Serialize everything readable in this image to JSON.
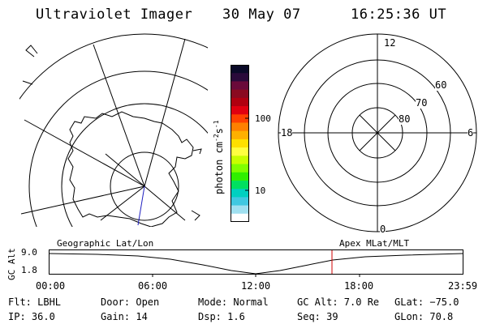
{
  "header": {
    "instrument": "Ultraviolet Imager",
    "date": "30 May 07",
    "time": "16:25:36 UT"
  },
  "colorbar": {
    "unit": "photon cm",
    "unit_exp1": "-2",
    "unit_mid": "s",
    "unit_exp2": "-1",
    "tick_high": "100",
    "tick_low": "10",
    "colors": [
      "#0a0a28",
      "#2a0a3a",
      "#6a0a3a",
      "#8a0a20",
      "#b00010",
      "#e00010",
      "#ff4000",
      "#ff8000",
      "#ffb000",
      "#ffe000",
      "#ffff40",
      "#c8ff00",
      "#80ff00",
      "#30f000",
      "#00e060",
      "#00d0c0",
      "#40c8e0",
      "#a0e0f0",
      "#ffffff"
    ]
  },
  "polar_right": {
    "top_label": "12",
    "left_label": "18",
    "right_label": "6",
    "bottom_label": "0",
    "ring_60": "60",
    "ring_70": "70",
    "ring_80": "80"
  },
  "timeline": {
    "ylabel": "GC Alt",
    "y_high": "9.0",
    "y_low": "1.8",
    "left_title": "Geographic Lat/Lon",
    "right_title": "Apex MLat/MLT",
    "xticks": [
      "00:00",
      "06:00",
      "12:00",
      "18:00",
      "23:59"
    ],
    "marker_color": "#d00000"
  },
  "status": {
    "flt": "Flt: LBHL",
    "ip": "IP: 36.0",
    "door": "Door: Open",
    "gain": "Gain: 14",
    "mode": "Mode: Normal",
    "dsp": "Dsp:    1.6",
    "gcalt": "GC Alt: 7.0 Re",
    "seq": "Seq: 39",
    "glat": "GLat: −75.0",
    "glon": "GLon:  70.8"
  }
}
